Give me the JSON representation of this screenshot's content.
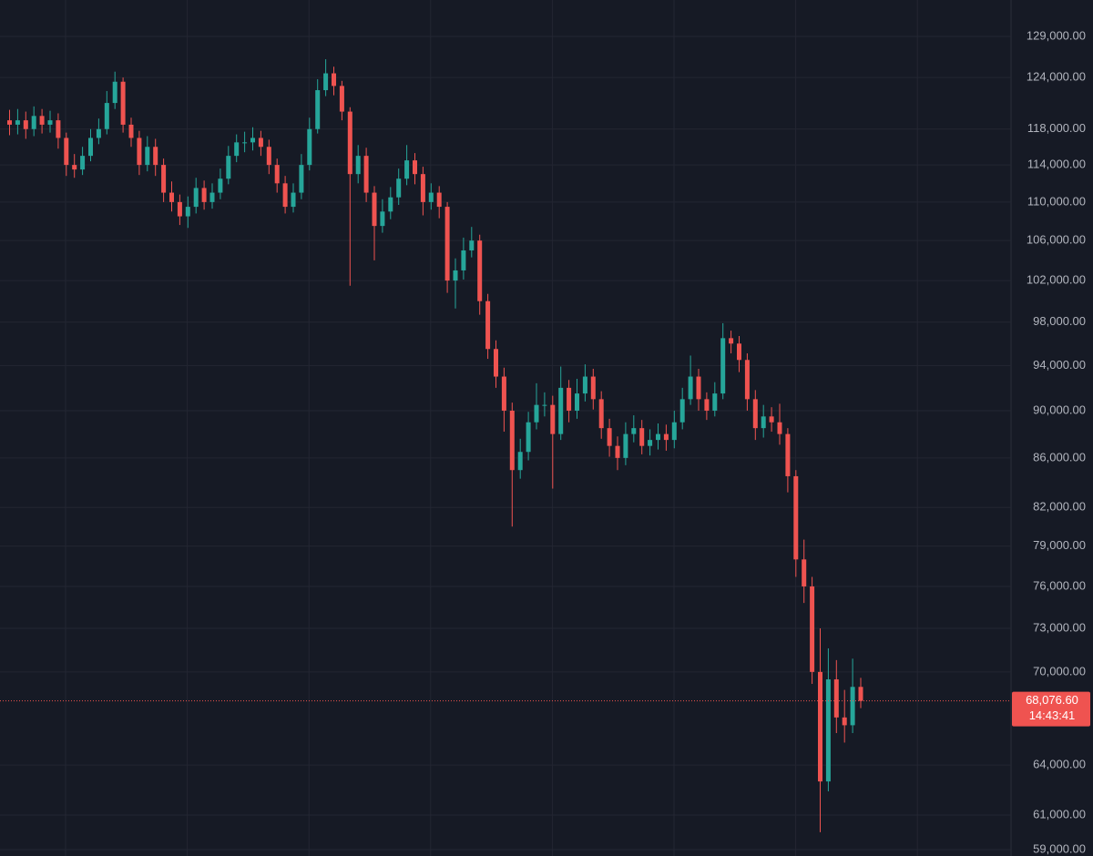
{
  "chart_data": {
    "type": "candlestick",
    "log_scale": true,
    "grid": true,
    "up_color": "#26a69a",
    "down_color": "#ef5350",
    "ylim": [
      58640,
      133600
    ],
    "yticks": [
      {
        "value": 129000,
        "label": "129,000.00"
      },
      {
        "value": 124000,
        "label": "124,000.00"
      },
      {
        "value": 118000,
        "label": "118,000.00"
      },
      {
        "value": 114000,
        "label": "114,000.00"
      },
      {
        "value": 110000,
        "label": "110,000.00"
      },
      {
        "value": 106000,
        "label": "106,000.00"
      },
      {
        "value": 102000,
        "label": "102,000.00"
      },
      {
        "value": 98000,
        "label": "98,000.00"
      },
      {
        "value": 94000,
        "label": "94,000.00"
      },
      {
        "value": 90000,
        "label": "90,000.00"
      },
      {
        "value": 86000,
        "label": "86,000.00"
      },
      {
        "value": 82000,
        "label": "82,000.00"
      },
      {
        "value": 79000,
        "label": "79,000.00"
      },
      {
        "value": 76000,
        "label": "76,000.00"
      },
      {
        "value": 73000,
        "label": "73,000.00"
      },
      {
        "value": 70000,
        "label": "70,000.00"
      },
      {
        "value": 64000,
        "label": "64,000.00"
      },
      {
        "value": 61000,
        "label": "61,000.00"
      },
      {
        "value": 59000,
        "label": "59,000.00"
      }
    ],
    "last_price": {
      "value": 68076.6,
      "label": "68,076.60"
    },
    "countdown": "14:43:41",
    "open": [
      119000,
      118500,
      119000,
      118000,
      119500,
      118500,
      119000,
      117000,
      114000,
      113500,
      115000,
      117000,
      118000,
      121000,
      123500,
      118500,
      117000,
      114000,
      116000,
      114000,
      111000,
      110000,
      108500,
      109500,
      111500,
      110000,
      111000,
      112500,
      115000,
      116500,
      116500,
      117000,
      116000,
      114000,
      112000,
      109500,
      111000,
      114000,
      118000,
      122500,
      124500,
      123000,
      120000,
      113000,
      115000,
      111000,
      107500,
      109000,
      110500,
      112500,
      114500,
      113000,
      110000,
      111000,
      109500,
      102000,
      103000,
      105000,
      106000,
      100000,
      95500,
      93000,
      90000,
      85000,
      86500,
      89000,
      90500,
      90500,
      88000,
      92000,
      90000,
      91500,
      93000,
      91000,
      88500,
      87000,
      86000,
      88000,
      88500,
      87000,
      87500,
      88000,
      87500,
      89000,
      91000,
      93000,
      91000,
      90000,
      91500,
      96500,
      96000,
      94500,
      91000,
      88500,
      89500,
      89000,
      88000,
      84500,
      78000,
      76000,
      70000,
      63000,
      69500,
      67000,
      66500,
      69000
    ],
    "high": [
      120200,
      120300,
      120000,
      120600,
      120300,
      120100,
      119800,
      117600,
      115200,
      116000,
      118000,
      119200,
      122400,
      124700,
      124000,
      119300,
      117800,
      117200,
      116900,
      114700,
      112200,
      110800,
      110600,
      112600,
      112300,
      112000,
      113600,
      116100,
      117400,
      117700,
      118200,
      117800,
      116800,
      114700,
      112800,
      112000,
      115200,
      119300,
      123800,
      126200,
      125300,
      123600,
      120500,
      116200,
      115900,
      111700,
      110300,
      111600,
      113600,
      116200,
      115300,
      113800,
      112000,
      111700,
      110000,
      104200,
      106300,
      107400,
      106600,
      100700,
      96300,
      93800,
      90700,
      87600,
      89900,
      92400,
      91600,
      91300,
      93900,
      92700,
      92800,
      94100,
      93700,
      91700,
      89300,
      87800,
      89000,
      89600,
      89200,
      88400,
      88900,
      88800,
      90000,
      92000,
      94900,
      93700,
      91600,
      92500,
      97900,
      97200,
      96700,
      95100,
      91800,
      90500,
      90300,
      90600,
      88500,
      85000,
      79500,
      76700,
      73000,
      71600,
      70800,
      68800,
      70900,
      69600
    ],
    "low": [
      117300,
      117400,
      116900,
      117200,
      117500,
      117600,
      115800,
      112800,
      112600,
      112900,
      114400,
      116300,
      117400,
      120300,
      117600,
      116000,
      112900,
      113300,
      112800,
      110000,
      109000,
      107600,
      107300,
      108800,
      109200,
      109300,
      110300,
      111900,
      114300,
      115400,
      115600,
      115000,
      113000,
      111000,
      108800,
      108900,
      110300,
      113400,
      117500,
      121800,
      121900,
      119000,
      101500,
      112000,
      110000,
      104000,
      106800,
      108200,
      109700,
      111800,
      111900,
      108600,
      109200,
      108300,
      100800,
      99300,
      102100,
      104300,
      98700,
      94600,
      92000,
      88200,
      80500,
      84300,
      85800,
      88400,
      89500,
      83500,
      87500,
      89000,
      89300,
      90800,
      90100,
      87600,
      86100,
      85000,
      85400,
      87300,
      86300,
      86200,
      86700,
      86600,
      86800,
      88400,
      90500,
      90000,
      89200,
      89500,
      91000,
      95100,
      93400,
      90000,
      87500,
      87700,
      88200,
      87100,
      83200,
      76700,
      74800,
      69200,
      60000,
      62400,
      66000,
      65400,
      66000,
      67600
    ],
    "close": [
      118500,
      119000,
      118000,
      119500,
      118500,
      119000,
      117000,
      114000,
      113500,
      115000,
      117000,
      118000,
      121000,
      123500,
      118500,
      117000,
      114000,
      116000,
      114000,
      111000,
      110000,
      108500,
      109500,
      111500,
      110000,
      111000,
      112500,
      115000,
      116500,
      116500,
      117000,
      116000,
      114000,
      112000,
      109500,
      111000,
      114000,
      118000,
      122500,
      124500,
      123000,
      120000,
      113000,
      115000,
      111000,
      107500,
      109000,
      110500,
      112500,
      114500,
      113000,
      110000,
      111000,
      109500,
      102000,
      103000,
      105000,
      106000,
      100000,
      95500,
      93000,
      90000,
      85000,
      86500,
      89000,
      90500,
      90500,
      88000,
      92000,
      90000,
      91500,
      93000,
      91000,
      88500,
      87000,
      86000,
      88000,
      88500,
      87000,
      87500,
      88000,
      87500,
      89000,
      91000,
      93000,
      91000,
      90000,
      91500,
      96500,
      96000,
      94500,
      91000,
      88500,
      89500,
      89000,
      88000,
      84500,
      78000,
      76000,
      70000,
      63000,
      69500,
      67000,
      66500,
      69000,
      68076.6
    ]
  }
}
